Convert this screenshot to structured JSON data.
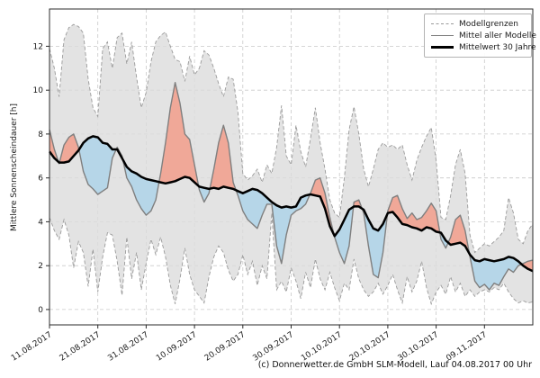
{
  "figure": {
    "caption": "(c) Donnerwetter.de GmbH SLM-Modell, Lauf 04.08.2017 00 Uhr"
  },
  "legend": {
    "position": "upper right",
    "items": [
      {
        "label": "Modellgrenzen",
        "style": "dashed-gray"
      },
      {
        "label": "Mittel aller Modelle",
        "style": "solid-gray"
      },
      {
        "label": "Mittelwert 30 Jahre",
        "style": "thick-black"
      }
    ]
  },
  "colors": {
    "band": "#dcdcdc",
    "band_edge": "#9a9a9a",
    "above_fill": "#f0a898",
    "below_fill": "#b6d6e8",
    "mean_line": "#7f7f7f",
    "climate_line": "#000000",
    "grid": "#c9c9c9",
    "spine": "#2b2b2b",
    "tick_label": "#1a1a1a"
  },
  "chart_data": {
    "type": "line",
    "title": "",
    "xlabel": "",
    "ylabel": "Mittlere Sonnenscheindauer [h]",
    "x_unit": "days since 11.08.2017 (daily values)",
    "xlim": [
      0,
      100
    ],
    "ylim": [
      -0.7,
      13.7
    ],
    "grid": true,
    "legend_position": "upper right",
    "y_ticks": [
      0,
      2,
      4,
      6,
      8,
      10,
      12
    ],
    "x_tick_days": [
      0,
      10,
      20,
      30,
      40,
      50,
      60,
      70,
      80,
      90
    ],
    "x_tick_labels": [
      "11.08.2017",
      "21.08.2017",
      "31.08.2017",
      "10.09.2017",
      "20.09.2017",
      "30.09.2017",
      "10.10.2017",
      "20.10.2017",
      "30.10.2017",
      "09.11.2017"
    ],
    "fill_rule": "red where model mean is above 30-year mean, blue where below; gray band between model boundaries",
    "series": [
      {
        "name": "Modellgrenze oben",
        "role": "upper",
        "style": "dashed-gray",
        "values": [
          11.9,
          11.0,
          9.7,
          12.3,
          12.85,
          13.0,
          12.9,
          12.6,
          10.5,
          9.2,
          8.8,
          11.9,
          12.2,
          11.0,
          12.4,
          12.6,
          11.2,
          12.2,
          10.6,
          9.2,
          9.9,
          11.3,
          12.2,
          12.5,
          12.65,
          12.0,
          11.4,
          11.3,
          10.4,
          11.55,
          10.7,
          11.0,
          11.8,
          11.6,
          11.0,
          10.3,
          9.7,
          10.6,
          10.5,
          9.0,
          6.2,
          5.9,
          6.1,
          6.4,
          5.8,
          6.6,
          6.2,
          7.4,
          9.3,
          7.0,
          6.6,
          8.4,
          7.2,
          6.5,
          7.8,
          9.2,
          7.6,
          6.4,
          5.0,
          4.4,
          4.2,
          6.0,
          8.2,
          9.25,
          8.0,
          6.4,
          5.6,
          6.4,
          7.3,
          7.6,
          7.4,
          7.5,
          7.3,
          7.5,
          6.6,
          5.9,
          6.8,
          7.4,
          7.9,
          8.3,
          6.8,
          4.2,
          4.1,
          5.2,
          6.6,
          7.3,
          6.2,
          3.4,
          2.6,
          2.8,
          3.0,
          2.9,
          3.1,
          3.3,
          3.6,
          5.1,
          4.4,
          3.2,
          3.0,
          3.6,
          3.9
        ]
      },
      {
        "name": "Modellgrenze unten",
        "role": "lower",
        "style": "dashed-gray",
        "values": [
          4.2,
          3.6,
          3.2,
          4.1,
          3.4,
          1.9,
          3.1,
          2.6,
          1.05,
          2.75,
          0.8,
          2.4,
          3.5,
          3.4,
          2.2,
          0.65,
          3.3,
          1.4,
          2.6,
          0.9,
          2.1,
          3.2,
          2.5,
          3.3,
          2.4,
          1.1,
          0.25,
          1.4,
          2.8,
          1.6,
          0.9,
          0.6,
          0.3,
          1.5,
          2.4,
          2.9,
          2.6,
          1.8,
          1.3,
          1.6,
          2.5,
          1.6,
          2.2,
          1.1,
          2.0,
          1.4,
          4.4,
          0.9,
          1.3,
          0.8,
          1.9,
          1.3,
          0.5,
          1.7,
          1.0,
          2.3,
          1.4,
          0.9,
          1.7,
          1.0,
          0.4,
          1.2,
          0.9,
          2.3,
          1.4,
          0.9,
          0.6,
          0.8,
          1.2,
          0.7,
          1.1,
          1.6,
          0.9,
          0.3,
          1.5,
          0.8,
          1.3,
          2.2,
          1.0,
          0.25,
          0.8,
          1.1,
          0.7,
          1.5,
          0.8,
          1.2,
          0.6,
          0.9,
          0.6,
          0.8,
          0.9,
          0.8,
          1.0,
          0.9,
          1.2,
          0.8,
          0.5,
          0.3,
          0.4,
          0.3,
          0.35
        ]
      },
      {
        "name": "Mittel aller Modelle",
        "role": "mean",
        "style": "solid-gray",
        "values": [
          8.2,
          7.3,
          6.65,
          7.5,
          7.85,
          8.0,
          7.4,
          6.3,
          5.7,
          5.5,
          5.25,
          5.4,
          5.55,
          6.9,
          7.4,
          7.0,
          6.0,
          5.6,
          5.0,
          4.6,
          4.3,
          4.5,
          5.0,
          6.2,
          7.6,
          9.2,
          10.35,
          9.4,
          8.0,
          7.75,
          6.6,
          5.45,
          4.9,
          5.3,
          6.4,
          7.6,
          8.4,
          7.6,
          5.8,
          5.2,
          4.5,
          4.1,
          3.9,
          3.7,
          4.3,
          4.8,
          4.8,
          2.9,
          2.1,
          3.4,
          4.3,
          4.5,
          4.6,
          4.8,
          5.3,
          5.9,
          6.0,
          5.3,
          4.2,
          3.3,
          2.6,
          2.1,
          2.9,
          4.9,
          5.0,
          4.4,
          2.9,
          1.6,
          1.45,
          2.6,
          4.5,
          5.1,
          5.2,
          4.6,
          4.15,
          4.4,
          4.1,
          4.2,
          4.5,
          4.85,
          4.5,
          3.2,
          2.8,
          3.3,
          4.1,
          4.3,
          3.6,
          2.4,
          1.3,
          1.0,
          1.15,
          0.9,
          1.2,
          1.1,
          1.5,
          1.85,
          1.7,
          2.0,
          2.1,
          2.2,
          2.25
        ]
      },
      {
        "name": "Mittelwert 30 Jahre",
        "role": "climate",
        "style": "thick-black",
        "values": [
          7.2,
          6.9,
          6.7,
          6.7,
          6.75,
          7.0,
          7.25,
          7.6,
          7.8,
          7.9,
          7.85,
          7.6,
          7.55,
          7.3,
          7.3,
          6.9,
          6.5,
          6.3,
          6.2,
          6.05,
          5.95,
          5.9,
          5.85,
          5.8,
          5.75,
          5.8,
          5.85,
          5.95,
          6.05,
          6.0,
          5.8,
          5.6,
          5.55,
          5.5,
          5.55,
          5.5,
          5.6,
          5.55,
          5.5,
          5.4,
          5.3,
          5.4,
          5.5,
          5.45,
          5.3,
          5.1,
          4.9,
          4.75,
          4.65,
          4.7,
          4.65,
          4.7,
          5.1,
          5.2,
          5.25,
          5.2,
          5.15,
          4.6,
          3.8,
          3.35,
          3.65,
          4.1,
          4.55,
          4.7,
          4.7,
          4.55,
          4.1,
          3.7,
          3.6,
          3.9,
          4.4,
          4.45,
          4.2,
          3.9,
          3.85,
          3.75,
          3.7,
          3.6,
          3.75,
          3.7,
          3.55,
          3.5,
          3.15,
          2.95,
          3.0,
          3.05,
          2.9,
          2.5,
          2.25,
          2.2,
          2.3,
          2.25,
          2.2,
          2.25,
          2.3,
          2.4,
          2.35,
          2.2,
          2.0,
          1.85,
          1.75
        ]
      }
    ]
  }
}
